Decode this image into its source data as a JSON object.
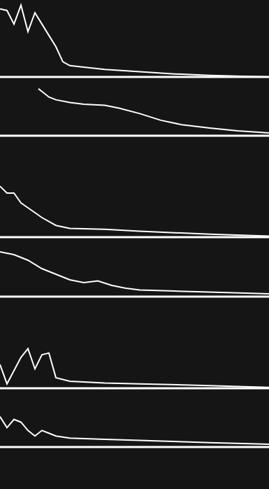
{
  "chart_data": [
    {
      "type": "line",
      "xlim": [
        0,
        385
      ],
      "ylim": [
        0,
        100
      ],
      "tick_labels": false,
      "color": "#ffffff",
      "x": [
        0,
        10,
        20,
        30,
        40,
        50,
        60,
        70,
        80,
        90,
        100,
        120,
        150,
        200,
        250,
        300,
        385
      ],
      "values": [
        90,
        88,
        70,
        95,
        60,
        85,
        70,
        55,
        40,
        20,
        15,
        13,
        10,
        7,
        4,
        2,
        0
      ]
    },
    {
      "type": "line",
      "xlim": [
        0,
        385
      ],
      "ylim": [
        0,
        100
      ],
      "tick_labels": false,
      "color": "#ffffff",
      "x": [
        55,
        60,
        70,
        80,
        100,
        120,
        150,
        170,
        200,
        230,
        260,
        300,
        340,
        385
      ],
      "values": [
        85,
        80,
        70,
        65,
        60,
        57,
        55,
        50,
        40,
        28,
        20,
        14,
        9,
        5
      ]
    },
    {
      "type": "line",
      "xlim": [
        0,
        385
      ],
      "ylim": [
        0,
        100
      ],
      "tick_labels": false,
      "color": "#ffffff",
      "x": [
        0,
        10,
        20,
        30,
        40,
        60,
        80,
        100,
        150,
        200,
        300,
        385
      ],
      "values": [
        52,
        45,
        45,
        35,
        30,
        20,
        12,
        9,
        8,
        6,
        3,
        1
      ]
    },
    {
      "type": "line",
      "xlim": [
        0,
        385
      ],
      "ylim": [
        0,
        100
      ],
      "tick_labels": false,
      "color": "#ffffff",
      "x": [
        0,
        20,
        40,
        60,
        80,
        100,
        120,
        140,
        160,
        180,
        200,
        250,
        300,
        385
      ],
      "values": [
        80,
        75,
        65,
        50,
        40,
        30,
        25,
        28,
        20,
        15,
        12,
        10,
        8,
        5
      ]
    },
    {
      "type": "line",
      "xlim": [
        0,
        385
      ],
      "ylim": [
        0,
        100
      ],
      "tick_labels": false,
      "color": "#ffffff",
      "x": [
        0,
        10,
        30,
        40,
        50,
        60,
        70,
        80,
        100,
        150,
        200,
        300,
        385
      ],
      "values": [
        27,
        5,
        35,
        45,
        22,
        38,
        40,
        12,
        8,
        6,
        5,
        3,
        1
      ]
    },
    {
      "type": "line",
      "xlim": [
        0,
        385
      ],
      "ylim": [
        0,
        100
      ],
      "tick_labels": false,
      "color": "#ffffff",
      "x": [
        0,
        10,
        20,
        30,
        40,
        50,
        60,
        70,
        80,
        100,
        150,
        200,
        300,
        385
      ],
      "values": [
        55,
        35,
        50,
        45,
        30,
        20,
        30,
        25,
        20,
        16,
        14,
        12,
        8,
        5
      ]
    }
  ]
}
